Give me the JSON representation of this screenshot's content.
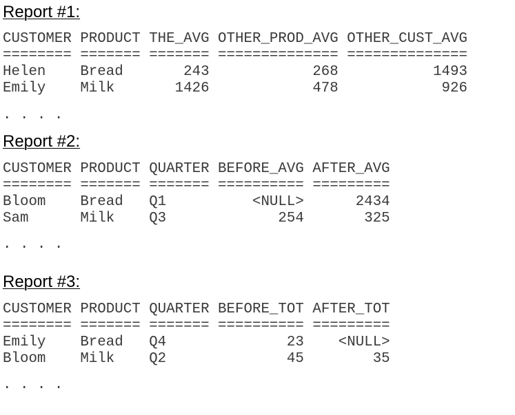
{
  "reports": [
    {
      "title": "Report #1:",
      "columns": [
        {
          "header": "CUSTOMER",
          "rule": "========",
          "align": "left",
          "width": 8
        },
        {
          "header": "PRODUCT",
          "rule": "=======",
          "align": "left",
          "width": 7
        },
        {
          "header": "THE_AVG",
          "rule": "=======",
          "align": "right",
          "width": 7
        },
        {
          "header": "OTHER_PROD_AVG",
          "rule": "==============",
          "align": "right",
          "width": 14
        },
        {
          "header": "OTHER_CUST_AVG",
          "rule": "==============",
          "align": "right",
          "width": 14
        }
      ],
      "rows": [
        [
          "Helen",
          "Bread",
          "243",
          "268",
          "1493"
        ],
        [
          "Emily",
          "Milk",
          "1426",
          "478",
          "926"
        ]
      ],
      "ellipsis": ". . . ."
    },
    {
      "title": "Report #2:",
      "columns": [
        {
          "header": "CUSTOMER",
          "rule": "========",
          "align": "left",
          "width": 8
        },
        {
          "header": "PRODUCT",
          "rule": "=======",
          "align": "left",
          "width": 7
        },
        {
          "header": "QUARTER",
          "rule": "=======",
          "align": "left",
          "width": 7
        },
        {
          "header": "BEFORE_AVG",
          "rule": "==========",
          "align": "right",
          "width": 10
        },
        {
          "header": "AFTER_AVG",
          "rule": "=========",
          "align": "right",
          "width": 9
        }
      ],
      "rows": [
        [
          "Bloom",
          "Bread",
          "Q1",
          "<NULL>",
          "2434"
        ],
        [
          "Sam",
          "Milk",
          "Q3",
          "254",
          "325"
        ]
      ],
      "ellipsis": ". . . ."
    },
    {
      "title": "Report #3:",
      "columns": [
        {
          "header": "CUSTOMER",
          "rule": "========",
          "align": "left",
          "width": 8
        },
        {
          "header": "PRODUCT",
          "rule": "=======",
          "align": "left",
          "width": 7
        },
        {
          "header": "QUARTER",
          "rule": "=======",
          "align": "left",
          "width": 7
        },
        {
          "header": "BEFORE_TOT",
          "rule": "==========",
          "align": "right",
          "width": 10
        },
        {
          "header": "AFTER_TOT",
          "rule": "=========",
          "align": "right",
          "width": 9
        }
      ],
      "rows": [
        [
          "Emily",
          "Bread",
          "Q4",
          "23",
          "<NULL>"
        ],
        [
          "Bloom",
          "Milk",
          "Q2",
          "45",
          "35"
        ]
      ],
      "ellipsis": ". . . ."
    }
  ]
}
